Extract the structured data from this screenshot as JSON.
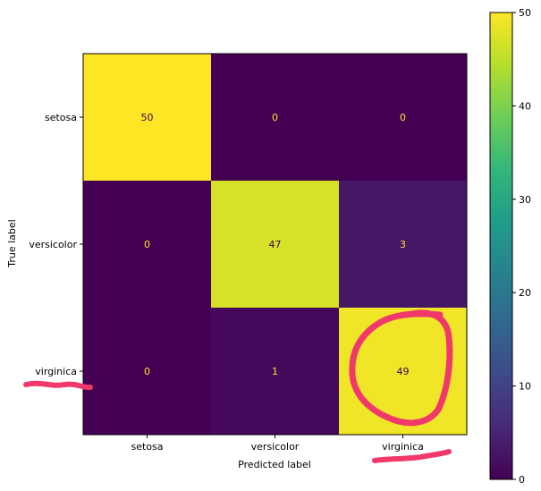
{
  "chart_data": {
    "type": "heatmap",
    "title": "",
    "xlabel": "Predicted label",
    "ylabel": "True label",
    "x_categories": [
      "setosa",
      "versicolor",
      "virginica"
    ],
    "y_categories": [
      "setosa",
      "versicolor",
      "virginica"
    ],
    "matrix": [
      [
        50,
        0,
        0
      ],
      [
        0,
        47,
        3
      ],
      [
        0,
        1,
        49
      ]
    ],
    "colormap": "viridis",
    "colorbar": {
      "range": [
        0,
        50
      ],
      "ticks": [
        "0",
        "10",
        "20",
        "30",
        "40",
        "50"
      ]
    },
    "annotation_colors": {
      "on_dark": "#fde725",
      "on_light": "#440154"
    },
    "markup_color": "#f0386b"
  }
}
